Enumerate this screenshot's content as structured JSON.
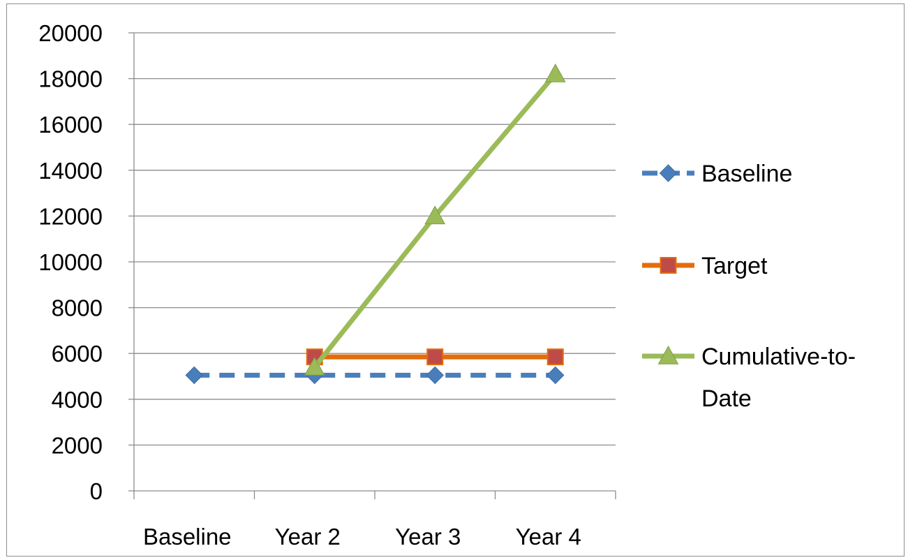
{
  "chart_data": {
    "type": "line",
    "categories": [
      "Baseline",
      "Year 2",
      "Year 3",
      "Year 4"
    ],
    "ylim": [
      0,
      20000
    ],
    "y_ticks": [
      0,
      2000,
      4000,
      6000,
      8000,
      10000,
      12000,
      14000,
      16000,
      18000,
      20000
    ],
    "grid": "horizontal",
    "legend_position": "right",
    "series": [
      {
        "name": "Baseline",
        "values": [
          5050,
          5050,
          5050,
          5050
        ],
        "color": "#4a7ebb",
        "line_style": "dashed",
        "marker": "diamond"
      },
      {
        "name": "Target",
        "values": [
          null,
          5850,
          5850,
          5850
        ],
        "color": "#e46c0a",
        "line_style": "solid",
        "marker": "square",
        "marker_color": "#be4b48"
      },
      {
        "name": "Cumulative-to-Date",
        "values": [
          null,
          5400,
          12000,
          18200
        ],
        "color": "#9bbb59",
        "line_style": "solid",
        "marker": "triangle"
      }
    ],
    "legend_labels": [
      [
        "Baseline"
      ],
      [
        "Target"
      ],
      [
        "Cumulative-to-",
        "Date"
      ]
    ]
  }
}
